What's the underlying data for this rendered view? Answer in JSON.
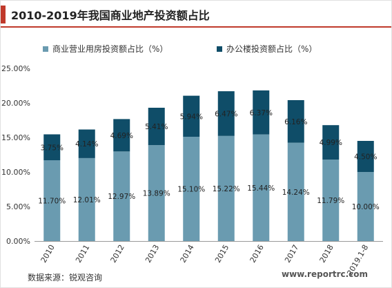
{
  "header": {
    "title": "2010-2019年我国商业地产投资额占比"
  },
  "footer": {
    "source": "数据来源：锐观咨询",
    "watermark": "www.reportrc.com"
  },
  "colors": {
    "accent": "#c0392b"
  },
  "chart_data": {
    "type": "bar",
    "stacked": true,
    "categories": [
      "2010",
      "2011",
      "2012",
      "2013",
      "2014",
      "2015",
      "2016",
      "2017",
      "2018",
      "2019.1-8"
    ],
    "series": [
      {
        "name": "商业营业用房投资额占比（%）",
        "color": "#6a9bb0",
        "values": [
          11.7,
          12.01,
          12.97,
          13.89,
          15.1,
          15.22,
          15.44,
          14.24,
          11.79,
          10.0
        ],
        "labels": [
          "11.70%",
          "12.01%",
          "12.97%",
          "13.89%",
          "15.10%",
          "15.22%",
          "15.44%",
          "14.24%",
          "11.79%",
          "10.00%"
        ]
      },
      {
        "name": "办公楼投资额占比（%）",
        "color": "#0f4d68",
        "values": [
          3.75,
          4.14,
          4.69,
          5.41,
          5.94,
          6.47,
          6.37,
          6.16,
          4.99,
          4.5
        ],
        "labels": [
          "3.75%",
          "4.14%",
          "4.69%",
          "5.41%",
          "5.94%",
          "6.47%",
          "6.37%",
          "6.16%",
          "4.99%",
          "4.50%"
        ]
      }
    ],
    "yticks": [
      "0.00%",
      "5.00%",
      "10.00%",
      "15.00%",
      "20.00%",
      "25.00%"
    ],
    "ylim": [
      0,
      25
    ],
    "grid": false,
    "legend_position": "top"
  }
}
